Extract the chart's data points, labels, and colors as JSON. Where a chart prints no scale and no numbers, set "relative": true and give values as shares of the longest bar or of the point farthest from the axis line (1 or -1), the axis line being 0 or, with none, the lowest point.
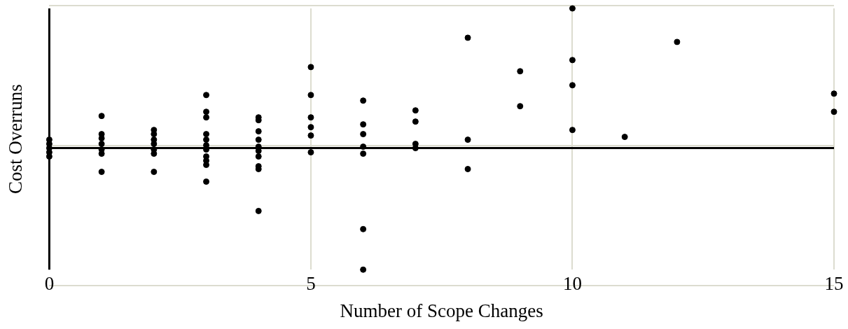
{
  "chart_data": {
    "type": "scatter",
    "xlabel": "Number of Scope Changes",
    "ylabel": "Cost Overruns",
    "relative": true,
    "xlim": [
      0,
      15
    ],
    "xticks": [
      0,
      5,
      10,
      15
    ],
    "grid": true,
    "marker": "circle",
    "series": [
      {
        "color": "#000000",
        "x": [
          0,
          0,
          0,
          0,
          0,
          1,
          1,
          1,
          1,
          1,
          1,
          1,
          2,
          2,
          2,
          2,
          2,
          2,
          2,
          3,
          3,
          3,
          3,
          3,
          3,
          3,
          3,
          3,
          3,
          3,
          4,
          4,
          4,
          4,
          4,
          4,
          4,
          4,
          4,
          4,
          5,
          5,
          5,
          5,
          5,
          5,
          6,
          6,
          6,
          6,
          6,
          6,
          6,
          7,
          7,
          7,
          7,
          8,
          8,
          8,
          9,
          9,
          10,
          10,
          10,
          10,
          11,
          12,
          15,
          15
        ],
        "values": [
          0.06,
          0.03,
          0.0,
          -0.03,
          -0.06,
          0.23,
          0.1,
          0.07,
          0.03,
          -0.01,
          -0.04,
          -0.17,
          0.13,
          0.1,
          0.06,
          0.03,
          -0.01,
          -0.04,
          -0.17,
          0.38,
          0.26,
          0.22,
          0.1,
          0.06,
          0.02,
          -0.01,
          -0.06,
          -0.09,
          -0.12,
          -0.24,
          0.22,
          0.2,
          0.12,
          0.06,
          0.01,
          -0.02,
          -0.06,
          -0.13,
          -0.15,
          -0.45,
          0.58,
          0.38,
          0.22,
          0.15,
          0.09,
          -0.03,
          0.34,
          0.17,
          0.1,
          0.01,
          -0.04,
          -0.58,
          -0.87,
          0.27,
          0.19,
          0.03,
          0,
          0.79,
          0.06,
          -0.15,
          0.55,
          0.3,
          1,
          0.63,
          0.45,
          0.13,
          0.08,
          0.76,
          0.39,
          0.26
        ]
      }
    ]
  }
}
